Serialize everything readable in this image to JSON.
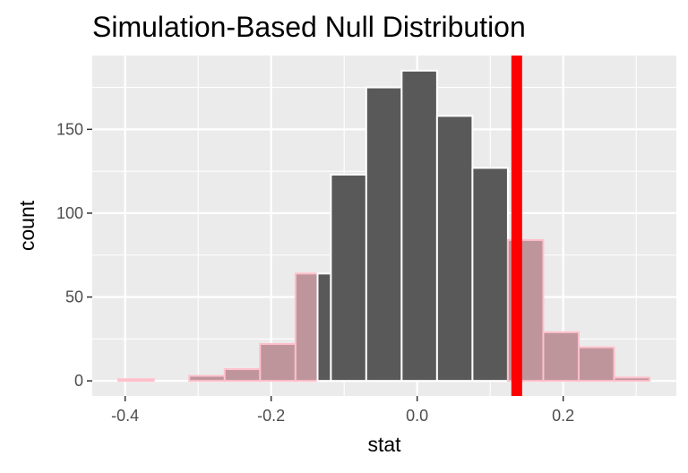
{
  "chart_data": {
    "type": "bar",
    "title": "Simulation-Based Null Distribution",
    "xlabel": "stat",
    "ylabel": "count",
    "xlim": [
      -0.445,
      0.355
    ],
    "ylim": [
      -9,
      194
    ],
    "x_ticks": [
      {
        "value": -0.4,
        "label": "-0.4"
      },
      {
        "value": -0.2,
        "label": "-0.2"
      },
      {
        "value": 0.0,
        "label": "0.0"
      },
      {
        "value": 0.2,
        "label": "0.2"
      }
    ],
    "y_ticks": [
      {
        "value": 0,
        "label": "0"
      },
      {
        "value": 50,
        "label": "50"
      },
      {
        "value": 100,
        "label": "100"
      },
      {
        "value": 150,
        "label": "150"
      }
    ],
    "bin_width": 0.0485,
    "bars": [
      {
        "center": -0.3849,
        "count": 1,
        "region": "shaded"
      },
      {
        "center": -0.2879,
        "count": 3,
        "region": "shaded"
      },
      {
        "center": -0.2394,
        "count": 7,
        "region": "shaded"
      },
      {
        "center": -0.1909,
        "count": 22,
        "region": "shaded"
      },
      {
        "center": -0.1424,
        "count": 64,
        "region": "split",
        "split_at": -0.1364
      },
      {
        "center": -0.0939,
        "count": 123,
        "region": "unshaded"
      },
      {
        "center": -0.0455,
        "count": 175,
        "region": "unshaded"
      },
      {
        "center": 0.003,
        "count": 185,
        "region": "unshaded"
      },
      {
        "center": 0.0515,
        "count": 158,
        "region": "unshaded"
      },
      {
        "center": 0.1,
        "count": 127,
        "region": "unshaded"
      },
      {
        "center": 0.1485,
        "count": 84,
        "region": "shaded"
      },
      {
        "center": 0.197,
        "count": 29,
        "region": "shaded"
      },
      {
        "center": 0.2455,
        "count": 20,
        "region": "shaded"
      },
      {
        "center": 0.294,
        "count": 2,
        "region": "shaded"
      }
    ],
    "observed_stat": 0.1364,
    "grid": true,
    "colors": {
      "panel_background": "#ebebeb",
      "grid": "#ffffff",
      "bar_fill": "#595959",
      "bar_outline": "#ffffff",
      "shade_fill": "#bf959c",
      "shade_outline": "#ffc0cb",
      "observed_line": "#ff0000"
    }
  }
}
